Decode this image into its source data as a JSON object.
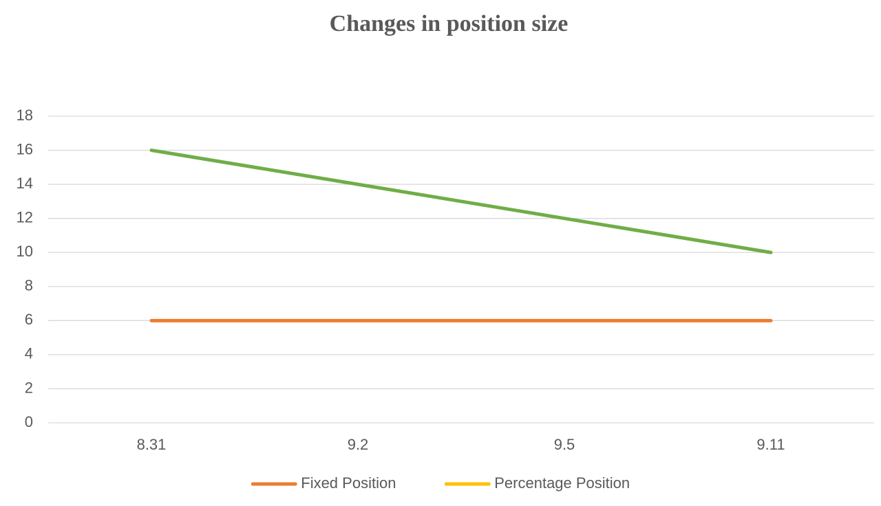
{
  "chart_data": {
    "type": "line",
    "title": "Changes in position size",
    "categories": [
      "8.31",
      "9.2",
      "9.5",
      "9.11"
    ],
    "series": [
      {
        "name": "Fixed Position",
        "color": "#ed7d31",
        "values": [
          6,
          6,
          6,
          6
        ]
      },
      {
        "name": "Percentage Position",
        "color": "#ffc000",
        "values": [
          null,
          null,
          null,
          null
        ]
      },
      {
        "color": "#70ad47",
        "values": [
          16,
          14,
          12,
          10
        ]
      }
    ],
    "ylim": [
      0,
      18
    ],
    "yticks": [
      0,
      2,
      4,
      6,
      8,
      10,
      12,
      14,
      16,
      18
    ],
    "grid": true,
    "legend": "bottom"
  }
}
